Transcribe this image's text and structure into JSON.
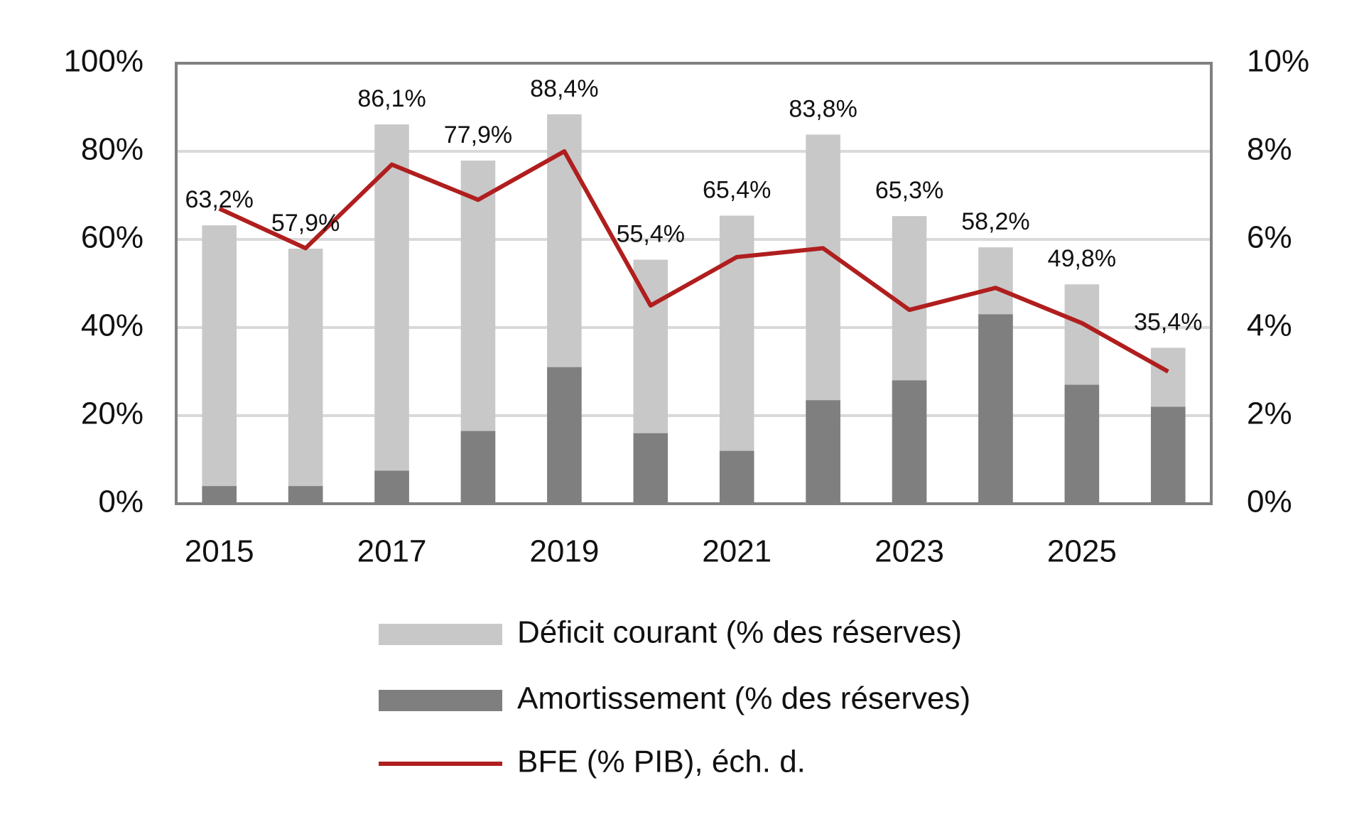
{
  "chart_data": {
    "type": "bar",
    "categories": [
      "2015",
      null,
      "2017",
      null,
      "2019",
      null,
      "2021",
      null,
      "2023",
      null,
      "2025",
      null
    ],
    "series": [
      {
        "name": "Déficit courant (% des réserves)",
        "color": "#c8c8c8",
        "type": "bar",
        "values": [
          63.2,
          57.9,
          86.1,
          77.9,
          88.4,
          55.4,
          65.4,
          83.8,
          65.3,
          58.2,
          49.8,
          35.4
        ],
        "value_labels": [
          "63,2%",
          "57,9%",
          "86,1%",
          "77,9%",
          "88,4%",
          "55,4%",
          "65,4%",
          "83,8%",
          "65,3%",
          "58,2%",
          "49,8%",
          "35,4%"
        ]
      },
      {
        "name": "Amortissement (% des réserves)",
        "color": "#7f7f7f",
        "type": "bar",
        "values": [
          4,
          4,
          7.5,
          16.5,
          31,
          16,
          12,
          23.5,
          28,
          43,
          27,
          22
        ]
      },
      {
        "name": "BFE (% PIB), éch. d.",
        "color": "#b01e1e",
        "type": "line",
        "axis": "y2",
        "values": [
          6.7,
          5.8,
          7.7,
          6.9,
          8.0,
          4.5,
          5.6,
          5.8,
          4.4,
          4.9,
          4.1,
          3.0
        ]
      }
    ],
    "ylim": [
      0,
      100
    ],
    "yticks": [
      {
        "value": 0,
        "label": "0%"
      },
      {
        "value": 20,
        "label": "20%"
      },
      {
        "value": 40,
        "label": "40%"
      },
      {
        "value": 60,
        "label": "60%"
      },
      {
        "value": 80,
        "label": "80%"
      },
      {
        "value": 100,
        "label": "100%"
      }
    ],
    "y2lim": [
      0,
      10
    ],
    "y2ticks": [
      {
        "value": 0,
        "label": "0%"
      },
      {
        "value": 2,
        "label": "2%"
      },
      {
        "value": 4,
        "label": "4%"
      },
      {
        "value": 6,
        "label": "6%"
      },
      {
        "value": 8,
        "label": "8%"
      },
      {
        "value": 10,
        "label": "10%"
      }
    ],
    "grid": true
  }
}
